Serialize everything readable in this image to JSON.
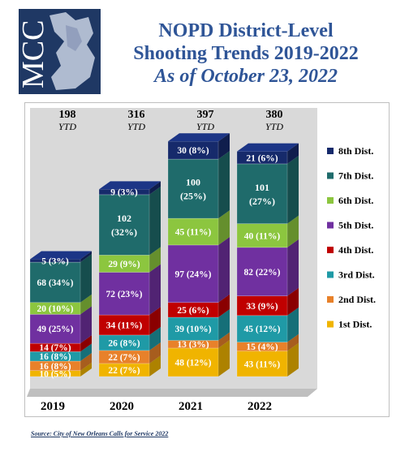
{
  "header": {
    "logo_text": "MCC",
    "title_line1": "NOPD District-Level",
    "title_line2": "Shooting Trends 2019-2022",
    "title_line3": "As of October 23, 2022"
  },
  "source": {
    "label": "Source",
    "text": ":  City of New Orleans Calls for Service 2022"
  },
  "colors": {
    "1st Dist.": "#f0b400",
    "2nd Dist.": "#e8812a",
    "3rd Dist.": "#1f9aa6",
    "4th Dist.": "#c00000",
    "5th Dist.": "#7030a0",
    "6th Dist.": "#8cc63f",
    "7th Dist.": "#1f6b6b",
    "8th Dist.": "#162a6b",
    "background": "#d9d9d9",
    "title": "#2f5597"
  },
  "chart_data": {
    "type": "bar",
    "stacked": true,
    "categories": [
      "2019",
      "2020",
      "2021",
      "2022"
    ],
    "totals": [
      198,
      316,
      397,
      380
    ],
    "totals_suffix": "YTD",
    "series": [
      {
        "name": "1st Dist.",
        "values": [
          10,
          22,
          48,
          43
        ],
        "labels": [
          "10 (5%)",
          "22 (7%)",
          "48 (12%)",
          "43 (11%)"
        ]
      },
      {
        "name": "2nd Dist.",
        "values": [
          16,
          22,
          13,
          15
        ],
        "labels": [
          "16 (8%)",
          "22 (7%)",
          "13 (3%)",
          "15 (4%)"
        ]
      },
      {
        "name": "3rd Dist.",
        "values": [
          16,
          26,
          39,
          45
        ],
        "labels": [
          "16 (8%)",
          "26 (8%)",
          "39 (10%)",
          "45 (12%)"
        ]
      },
      {
        "name": "4th Dist.",
        "values": [
          14,
          34,
          25,
          33
        ],
        "labels": [
          "14 (7%)",
          "34 (11%)",
          "25 (6%)",
          "33 (9%)"
        ]
      },
      {
        "name": "5th Dist.",
        "values": [
          49,
          72,
          97,
          82
        ],
        "labels": [
          "49 (25%)",
          "72 (23%)",
          "97 (24%)",
          "82 (22%)"
        ]
      },
      {
        "name": "6th Dist.",
        "values": [
          20,
          29,
          45,
          40
        ],
        "labels": [
          "20 (10%)",
          "29 (9%)",
          "45 (11%)",
          "40 (11%)"
        ]
      },
      {
        "name": "7th Dist.",
        "values": [
          68,
          102,
          100,
          101
        ],
        "labels": [
          "68 (34%)",
          "102 (32%)",
          "100 (25%)",
          "101 (27%)"
        ]
      },
      {
        "name": "8th Dist.",
        "values": [
          5,
          9,
          30,
          21
        ],
        "labels": [
          "5 (3%)",
          "9 (3%)",
          "30 (8%)",
          "21 (6%)"
        ]
      }
    ],
    "legend_order": [
      "8th Dist.",
      "7th Dist.",
      "6th Dist.",
      "5th Dist.",
      "4th Dist.",
      "3rd Dist.",
      "2nd Dist.",
      "1st Dist."
    ],
    "legend_position": "right"
  }
}
